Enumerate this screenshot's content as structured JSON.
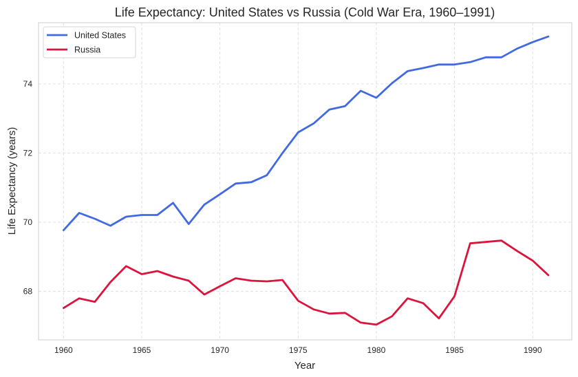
{
  "chart_data": {
    "type": "line",
    "title": "Life Expectancy: United States vs Russia (Cold War Era, 1960–1991)",
    "xlabel": "Year",
    "ylabel": "Life Expectancy (years)",
    "xlim": [
      1958.4,
      1992.5
    ],
    "ylim": [
      66.6,
      75.77
    ],
    "xticks": [
      1960,
      1965,
      1970,
      1975,
      1980,
      1985,
      1990
    ],
    "yticks": [
      68,
      70,
      72,
      74
    ],
    "grid": true,
    "legend_position": "top-left",
    "x": [
      1960,
      1961,
      1962,
      1963,
      1964,
      1965,
      1966,
      1967,
      1968,
      1969,
      1970,
      1971,
      1972,
      1973,
      1974,
      1975,
      1976,
      1977,
      1978,
      1979,
      1980,
      1981,
      1982,
      1983,
      1984,
      1985,
      1986,
      1987,
      1988,
      1989,
      1990,
      1991
    ],
    "series": [
      {
        "name": "United States",
        "color": "#4169e1",
        "values": [
          69.77,
          70.27,
          70.1,
          69.9,
          70.16,
          70.21,
          70.21,
          70.56,
          69.95,
          70.51,
          70.81,
          71.12,
          71.16,
          71.36,
          72.0,
          72.6,
          72.86,
          73.26,
          73.36,
          73.8,
          73.6,
          74.02,
          74.37,
          74.46,
          74.56,
          74.56,
          74.63,
          74.77,
          74.77,
          75.02,
          75.21,
          75.37
        ]
      },
      {
        "name": "Russia",
        "color": "#dc143c",
        "values": [
          67.52,
          67.8,
          67.7,
          68.27,
          68.73,
          68.5,
          68.59,
          68.43,
          68.31,
          67.91,
          68.15,
          68.38,
          68.31,
          68.29,
          68.33,
          67.73,
          67.48,
          67.36,
          67.38,
          67.1,
          67.04,
          67.28,
          67.8,
          67.66,
          67.22,
          67.86,
          69.39,
          69.43,
          69.47,
          69.17,
          68.89,
          68.47
        ]
      }
    ]
  }
}
